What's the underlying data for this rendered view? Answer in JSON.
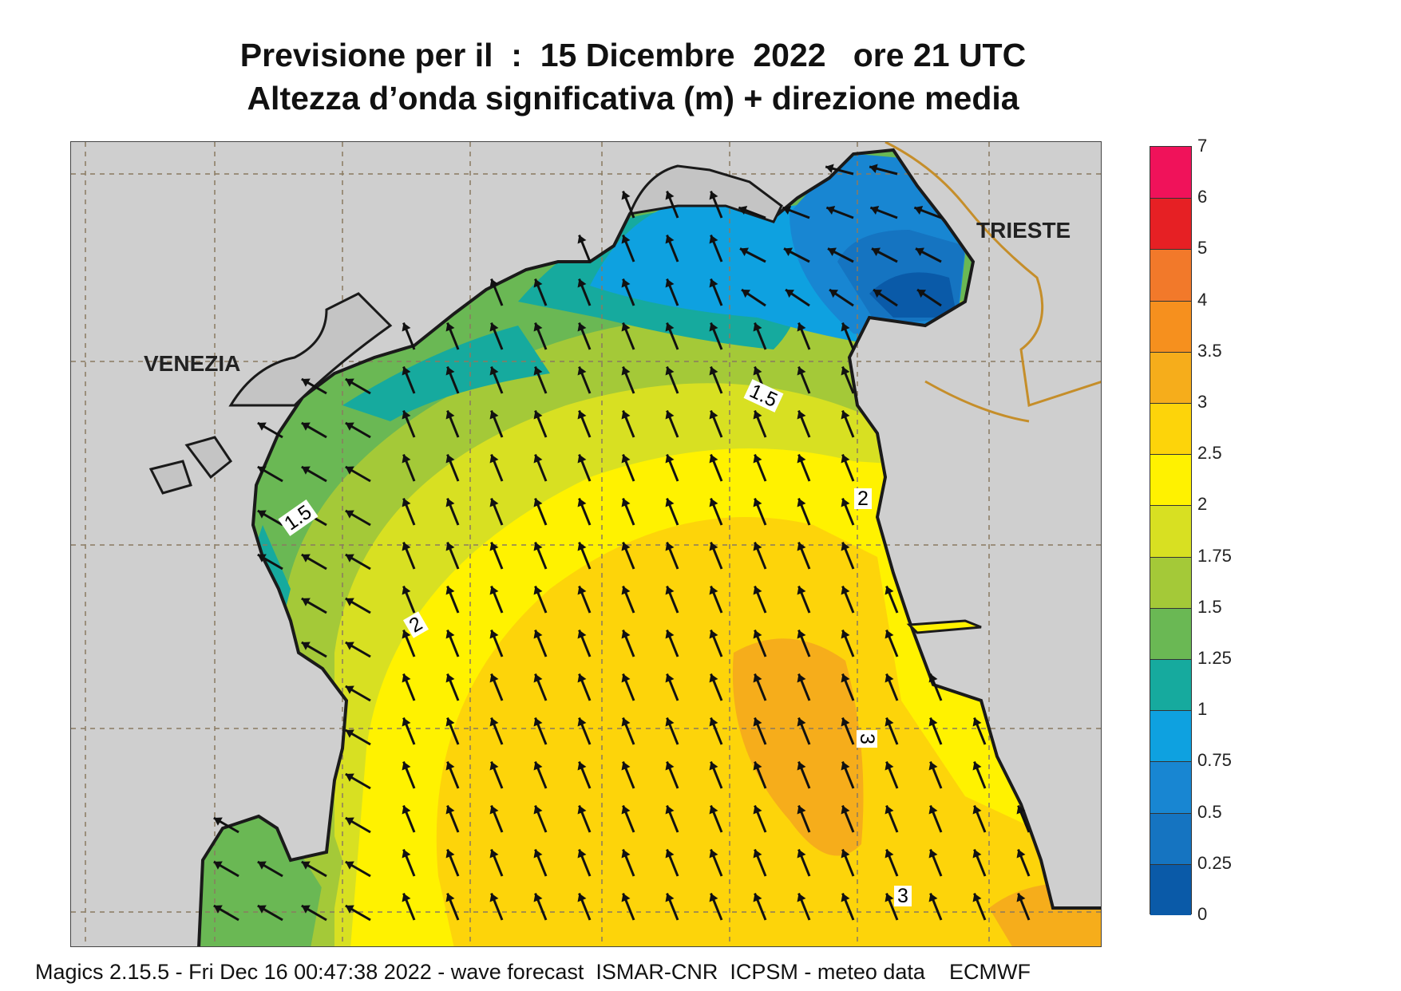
{
  "title": {
    "line1": "Previsione per il  :  15 Dicembre  2022   ore 21 UTC",
    "line2": "Altezza d’onda significativa (m) + direzione media"
  },
  "cities": {
    "venezia": "VENEZIA",
    "trieste": "TRIESTE"
  },
  "contour_labels": [
    {
      "text": "1.5",
      "rot": -25
    },
    {
      "text": "1.5",
      "rot": -35
    },
    {
      "text": "2",
      "rot": -30
    },
    {
      "text": "2",
      "rot": 0
    },
    {
      "text": "3",
      "rot": 90
    },
    {
      "text": "3",
      "rot": 0
    }
  ],
  "colorbar": {
    "labels": [
      "7",
      "6",
      "5",
      "4",
      "3.5",
      "3",
      "2.5",
      "2",
      "1.75",
      "1.5",
      "1.25",
      "1",
      "0.75",
      "0.5",
      "0.25",
      "0"
    ],
    "colors": [
      "#f0125a",
      "#e62024",
      "#f2792a",
      "#f6901e",
      "#f6ad1b",
      "#fdd40a",
      "#fff200",
      "#d8e022",
      "#a4c938",
      "#6ab854",
      "#16aa9e",
      "#0ea1e0",
      "#1886d2",
      "#1574c1",
      "#0a5aa8"
    ]
  },
  "colors": {
    "land": "#cfcfcf",
    "coast": "#1a1a1a",
    "border": "#c58e2a"
  },
  "arrow_direction": "north-northwest",
  "footer": "Magics 2.15.5 - Fri Dec 16 00:47:38 2022 - wave forecast  ISMAR-CNR  ICPSM - meteo data    ECMWF"
}
